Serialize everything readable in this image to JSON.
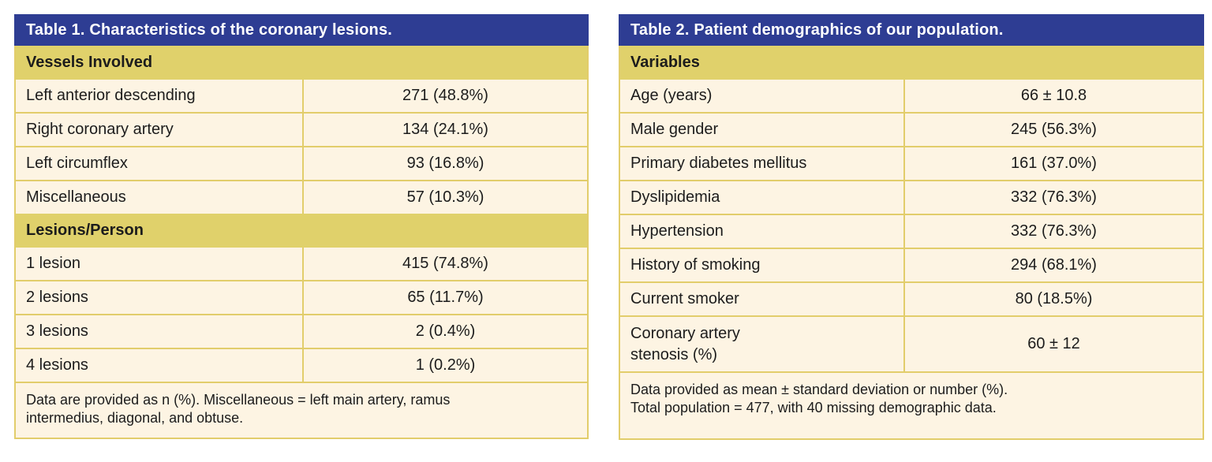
{
  "colors": {
    "title_bar_bg": "#2e3d93",
    "title_bar_text": "#ffffff",
    "section_band_bg": "#e0d16b",
    "row_bg": "#fdf4e3",
    "border": "#e2cd6b",
    "text": "#1c1c1c"
  },
  "table1": {
    "title": "Table 1. Characteristics of the coronary lesions.",
    "sections": [
      {
        "header": "Vessels Involved",
        "rows": [
          {
            "label": "Left anterior descending",
            "value": "271 (48.8%)"
          },
          {
            "label": "Right coronary artery",
            "value": "134 (24.1%)"
          },
          {
            "label": "Left circumflex",
            "value": "93 (16.8%)"
          },
          {
            "label": "Miscellaneous",
            "value": "57 (10.3%)"
          }
        ]
      },
      {
        "header": "Lesions/Person",
        "rows": [
          {
            "label": "1 lesion",
            "value": "415 (74.8%)"
          },
          {
            "label": "2 lesions",
            "value": "65 (11.7%)"
          },
          {
            "label": "3 lesions",
            "value": "2 (0.4%)"
          },
          {
            "label": "4 lesions",
            "value": "1 (0.2%)"
          }
        ]
      }
    ],
    "footnote": "Data are provided as n (%). Miscellaneous = left main artery, ramus\nintermedius, diagonal, and obtuse."
  },
  "table2": {
    "title": "Table 2. Patient demographics of our population.",
    "sections": [
      {
        "header": "Variables",
        "rows": [
          {
            "label": "Age (years)",
            "value": "66 ± 10.8"
          },
          {
            "label": "Male gender",
            "value": "245 (56.3%)"
          },
          {
            "label": "Primary diabetes mellitus",
            "value": "161 (37.0%)"
          },
          {
            "label": "Dyslipidemia",
            "value": "332 (76.3%)"
          },
          {
            "label": "Hypertension",
            "value": "332 (76.3%)"
          },
          {
            "label": "History of smoking",
            "value": "294 (68.1%)"
          },
          {
            "label": "Current smoker",
            "value": "80 (18.5%)"
          },
          {
            "label": "Coronary artery\nstenosis (%)",
            "value": "60 ± 12",
            "tall": true
          }
        ]
      }
    ],
    "footnote": "Data provided as mean ± standard deviation or number (%).\nTotal population = 477, with 40 missing demographic data."
  }
}
